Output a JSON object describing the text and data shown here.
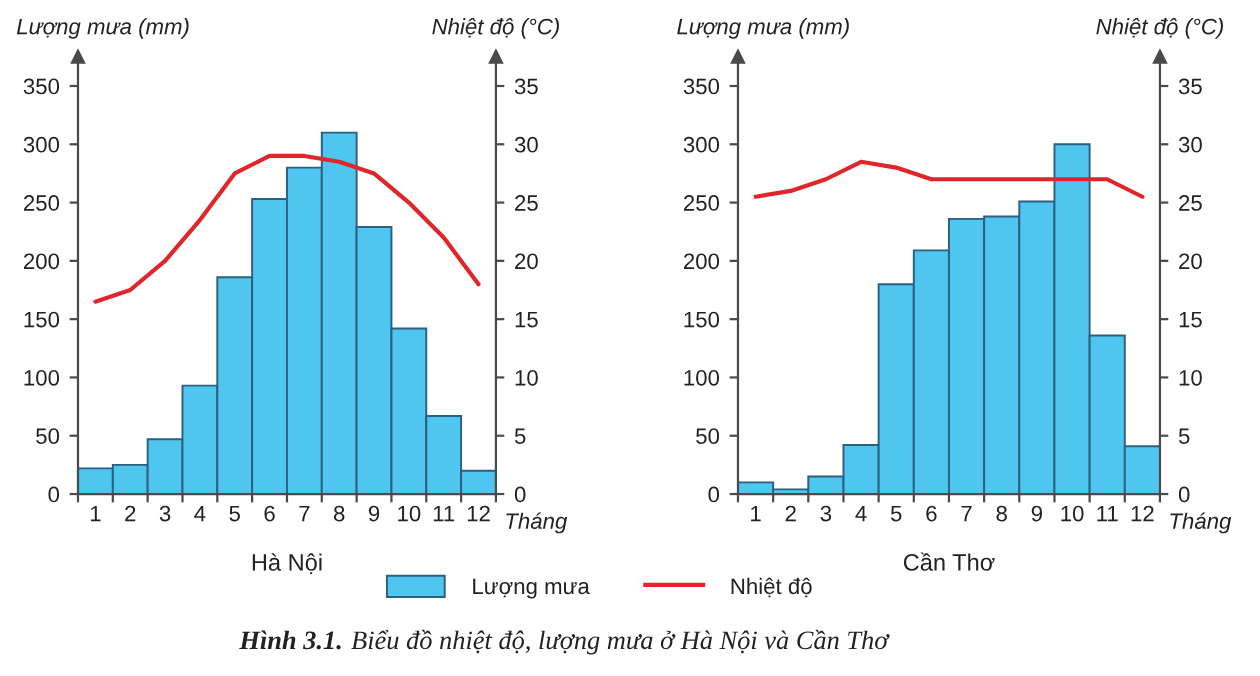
{
  "chart_data": [
    {
      "type": "bar",
      "title": "Hà Nội",
      "xlabel": "Tháng",
      "ylabel": "Lượng mưa (mm)",
      "y2label": "Nhiệt độ (°C)",
      "categories": [
        "1",
        "2",
        "3",
        "4",
        "5",
        "6",
        "7",
        "8",
        "9",
        "10",
        "11",
        "12"
      ],
      "series": [
        {
          "name": "Lượng mưa",
          "color": "#4fc6f0",
          "values": [
            22,
            25,
            47,
            93,
            186,
            253,
            280,
            310,
            229,
            142,
            67,
            20
          ]
        },
        {
          "name": "Nhiệt độ",
          "type": "line",
          "axis": "y2",
          "color": "#e0262b",
          "values": [
            16.5,
            17.5,
            20,
            23.5,
            27.5,
            29,
            29,
            28.5,
            27.5,
            25,
            22,
            18
          ]
        }
      ],
      "ylim": [
        0,
        375
      ],
      "yticks": [
        0,
        50,
        100,
        150,
        200,
        250,
        300,
        350
      ],
      "y2lim": [
        0,
        37.5
      ],
      "y2ticks": [
        0,
        5,
        10,
        15,
        20,
        25,
        30,
        35
      ],
      "legend": "bottom"
    },
    {
      "type": "bar",
      "title": "Cần Thơ",
      "xlabel": "Tháng",
      "ylabel": "Lượng mưa (mm)",
      "y2label": "Nhiệt độ (°C)",
      "categories": [
        "1",
        "2",
        "3",
        "4",
        "5",
        "6",
        "7",
        "8",
        "9",
        "10",
        "11",
        "12"
      ],
      "series": [
        {
          "name": "Lượng mưa",
          "color": "#4fc6f0",
          "values": [
            10,
            4,
            15,
            42,
            180,
            209,
            236,
            238,
            251,
            300,
            136,
            41
          ]
        },
        {
          "name": "Nhiệt độ",
          "type": "line",
          "axis": "y2",
          "color": "#e0262b",
          "values": [
            25.5,
            26,
            27,
            28.5,
            28,
            27,
            27,
            27,
            27,
            27,
            27,
            25.5
          ]
        }
      ],
      "ylim": [
        0,
        375
      ],
      "yticks": [
        0,
        50,
        100,
        150,
        200,
        250,
        300,
        350
      ],
      "y2lim": [
        0,
        37.5
      ],
      "y2ticks": [
        0,
        5,
        10,
        15,
        20,
        25,
        30,
        35
      ],
      "annotations": [
        "Hình 3.1.",
        "Biểu đồ nhiệt độ, lượng mưa ở Hà Nội và Cần Thơ"
      ]
    }
  ]
}
